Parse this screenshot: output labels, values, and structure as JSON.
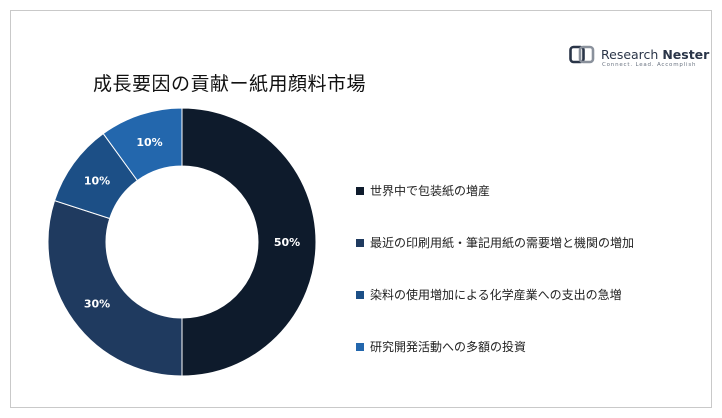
{
  "title": "成長要因の貢献ー紙用顔料市場",
  "logo": {
    "name_regular": "Research ",
    "name_bold": "Nester",
    "tagline": "Connect. Lead. Accomplish"
  },
  "chart_data": {
    "type": "pie",
    "donut": true,
    "categories": [
      "世界中で包装紙の増産",
      "最近の印刷用紙・筆記用紙の需要増と機関の増加",
      "染料の使用増加による化学産業への支出の急増",
      "研究開発活動への多額の投資"
    ],
    "values": [
      50,
      30,
      10,
      10
    ],
    "labels": [
      "50%",
      "30%",
      "10%",
      "10%"
    ],
    "colors": [
      "#0e1b2c",
      "#1f3a5f",
      "#1c4f86",
      "#2367ad"
    ],
    "legend_position": "right"
  }
}
